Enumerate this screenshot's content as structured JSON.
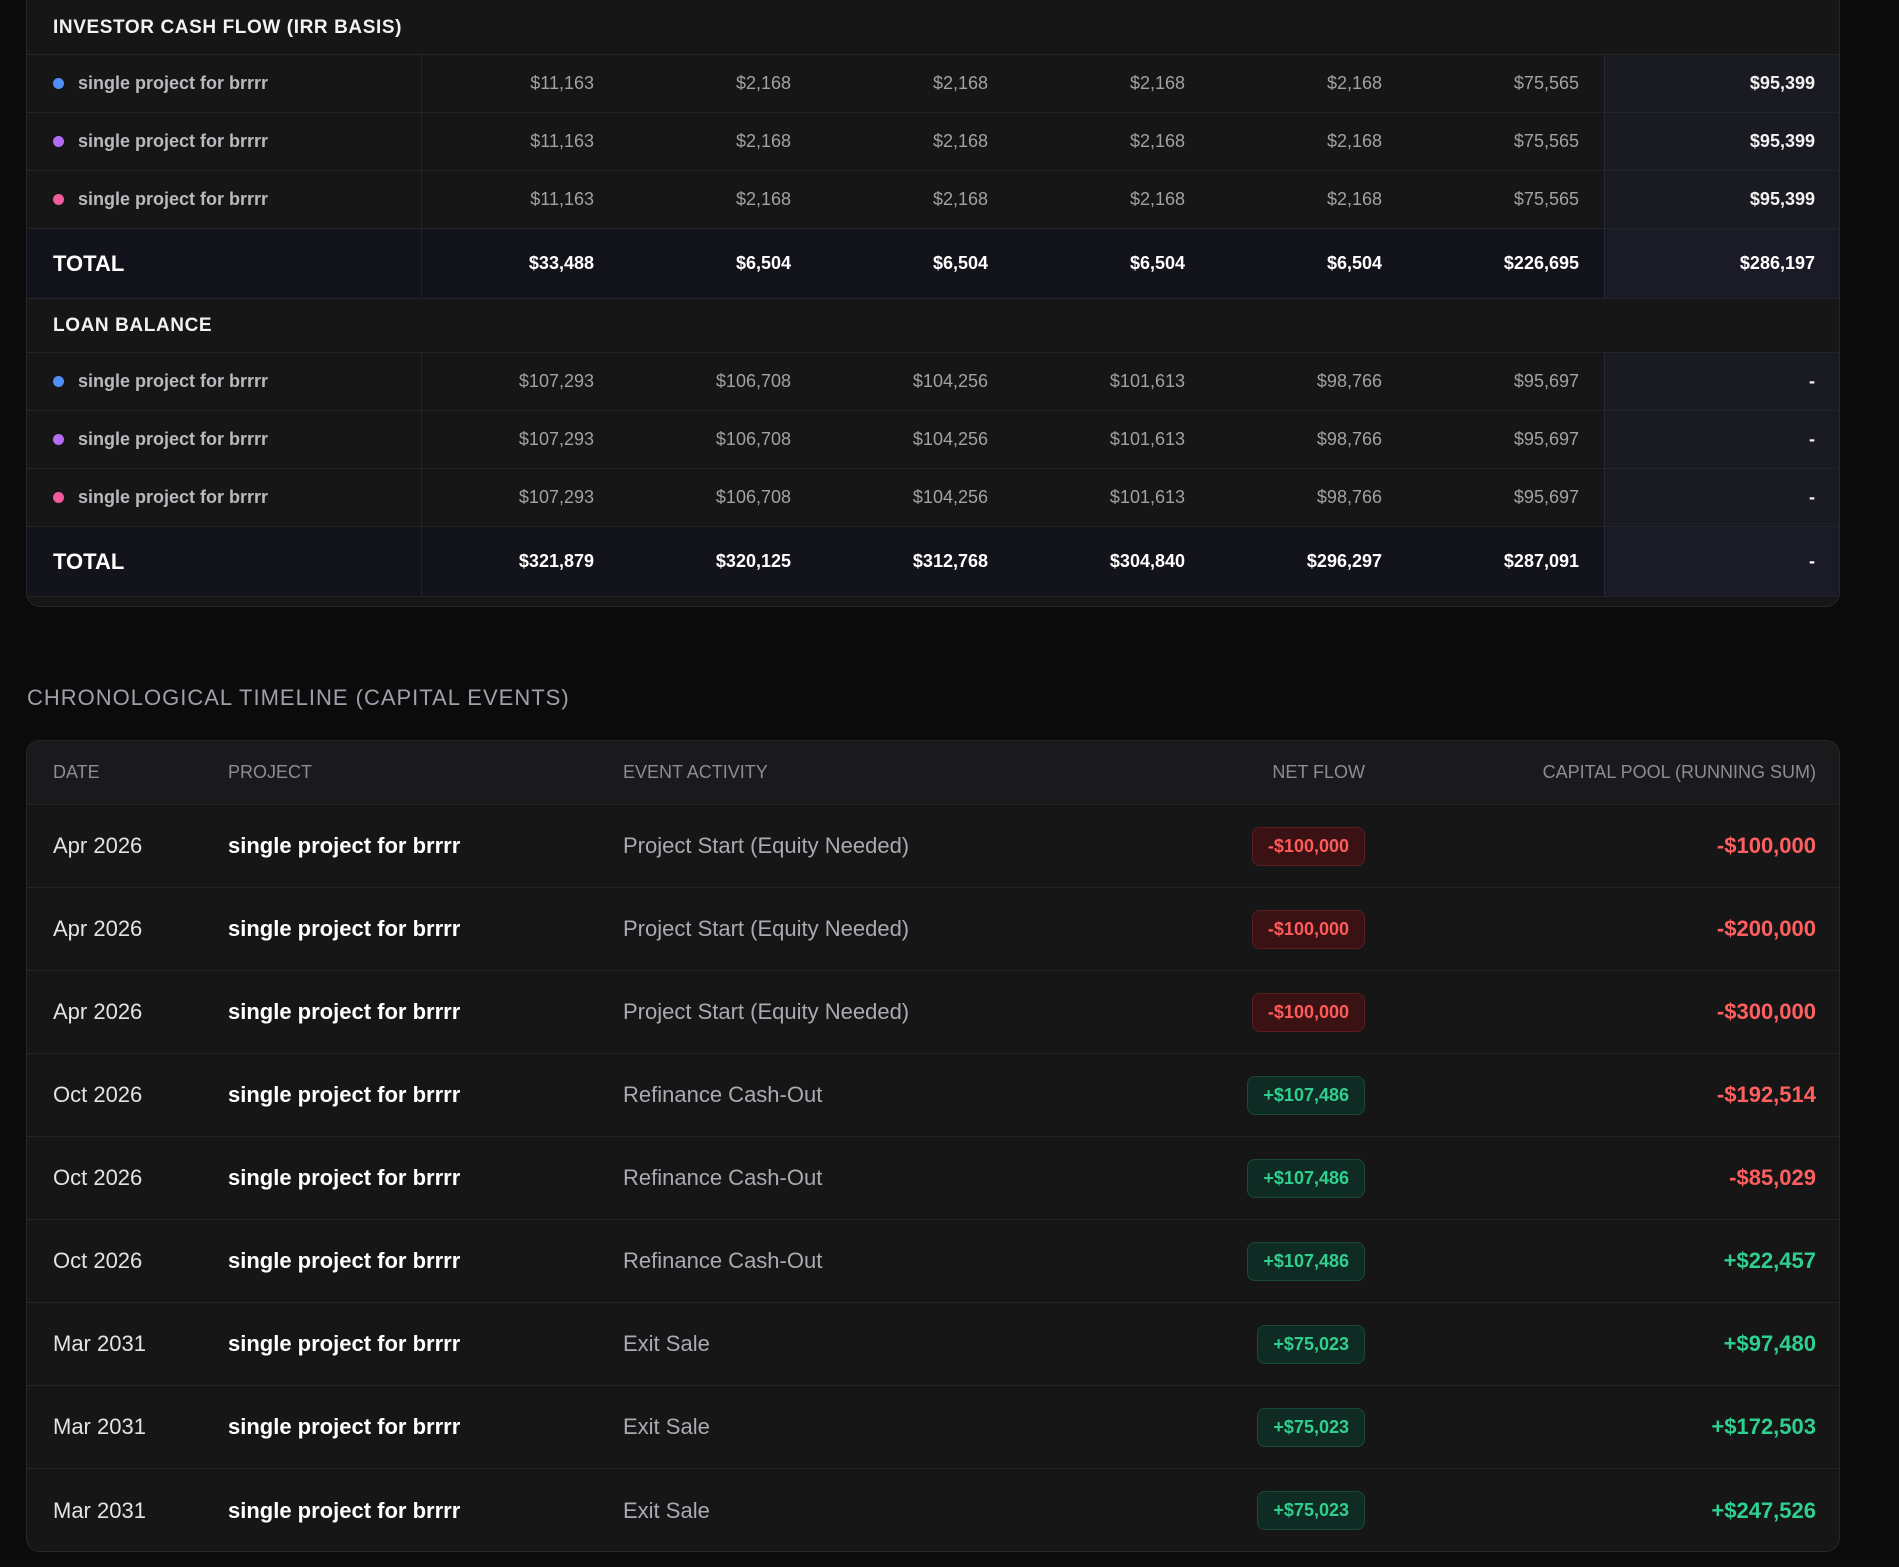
{
  "investor_section": {
    "title": "INVESTOR CASH FLOW (IRR BASIS)",
    "rows": [
      {
        "dot_color": "#4f8ff7",
        "name": "single project for brrrr",
        "values": [
          "$11,163",
          "$2,168",
          "$2,168",
          "$2,168",
          "$2,168",
          "$75,565"
        ],
        "total": "$95,399"
      },
      {
        "dot_color": "#b46cf5",
        "name": "single project for brrrr",
        "values": [
          "$11,163",
          "$2,168",
          "$2,168",
          "$2,168",
          "$2,168",
          "$75,565"
        ],
        "total": "$95,399"
      },
      {
        "dot_color": "#f25a9c",
        "name": "single project for brrrr",
        "values": [
          "$11,163",
          "$2,168",
          "$2,168",
          "$2,168",
          "$2,168",
          "$75,565"
        ],
        "total": "$95,399"
      }
    ],
    "total_row": {
      "label": "TOTAL",
      "values": [
        "$33,488",
        "$6,504",
        "$6,504",
        "$6,504",
        "$6,504",
        "$226,695"
      ],
      "total": "$286,197"
    }
  },
  "loan_section": {
    "title": "LOAN BALANCE",
    "rows": [
      {
        "dot_color": "#4f8ff7",
        "name": "single project for brrrr",
        "values": [
          "$107,293",
          "$106,708",
          "$104,256",
          "$101,613",
          "$98,766",
          "$95,697"
        ],
        "total": "-"
      },
      {
        "dot_color": "#b46cf5",
        "name": "single project for brrrr",
        "values": [
          "$107,293",
          "$106,708",
          "$104,256",
          "$101,613",
          "$98,766",
          "$95,697"
        ],
        "total": "-"
      },
      {
        "dot_color": "#f25a9c",
        "name": "single project for brrrr",
        "values": [
          "$107,293",
          "$106,708",
          "$104,256",
          "$101,613",
          "$98,766",
          "$95,697"
        ],
        "total": "-"
      }
    ],
    "total_row": {
      "label": "TOTAL",
      "values": [
        "$321,879",
        "$320,125",
        "$312,768",
        "$304,840",
        "$296,297",
        "$287,091"
      ],
      "total": "-"
    }
  },
  "timeline": {
    "title": "CHRONOLOGICAL TIMELINE (CAPITAL EVENTS)",
    "headers": {
      "date": "DATE",
      "project": "PROJECT",
      "event": "EVENT ACTIVITY",
      "flow": "NET FLOW",
      "pool": "CAPITAL POOL (RUNNING SUM)"
    },
    "rows": [
      {
        "date": "Apr 2026",
        "project": "single project for brrrr",
        "event": "Project Start (Equity Needed)",
        "flow": "-$100,000",
        "flow_sign": "neg",
        "pool": "-$100,000",
        "pool_sign": "neg"
      },
      {
        "date": "Apr 2026",
        "project": "single project for brrrr",
        "event": "Project Start (Equity Needed)",
        "flow": "-$100,000",
        "flow_sign": "neg",
        "pool": "-$200,000",
        "pool_sign": "neg"
      },
      {
        "date": "Apr 2026",
        "project": "single project for brrrr",
        "event": "Project Start (Equity Needed)",
        "flow": "-$100,000",
        "flow_sign": "neg",
        "pool": "-$300,000",
        "pool_sign": "neg"
      },
      {
        "date": "Oct 2026",
        "project": "single project for brrrr",
        "event": "Refinance Cash-Out",
        "flow": "+$107,486",
        "flow_sign": "pos",
        "pool": "-$192,514",
        "pool_sign": "neg"
      },
      {
        "date": "Oct 2026",
        "project": "single project for brrrr",
        "event": "Refinance Cash-Out",
        "flow": "+$107,486",
        "flow_sign": "pos",
        "pool": "-$85,029",
        "pool_sign": "neg"
      },
      {
        "date": "Oct 2026",
        "project": "single project for brrrr",
        "event": "Refinance Cash-Out",
        "flow": "+$107,486",
        "flow_sign": "pos",
        "pool": "+$22,457",
        "pool_sign": "pos"
      },
      {
        "date": "Mar 2031",
        "project": "single project for brrrr",
        "event": "Exit Sale",
        "flow": "+$75,023",
        "flow_sign": "pos",
        "pool": "+$97,480",
        "pool_sign": "pos"
      },
      {
        "date": "Mar 2031",
        "project": "single project for brrrr",
        "event": "Exit Sale",
        "flow": "+$75,023",
        "flow_sign": "pos",
        "pool": "+$172,503",
        "pool_sign": "pos"
      },
      {
        "date": "Mar 2031",
        "project": "single project for brrrr",
        "event": "Exit Sale",
        "flow": "+$75,023",
        "flow_sign": "pos",
        "pool": "+$247,526",
        "pool_sign": "pos"
      }
    ]
  }
}
